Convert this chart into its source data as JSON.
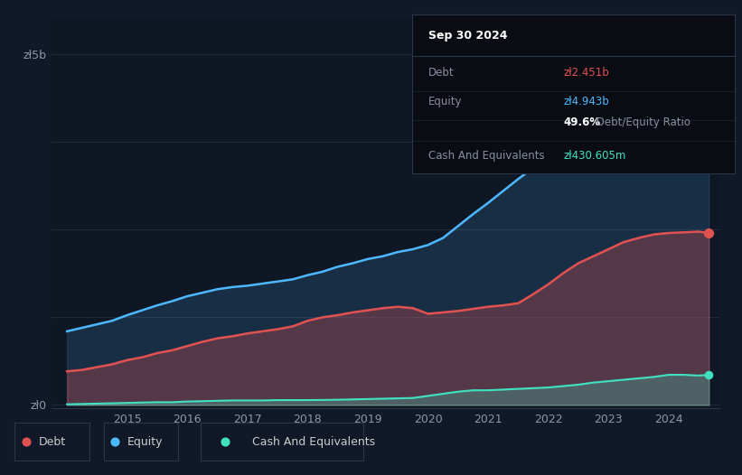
{
  "background_color": "#111827",
  "chart_bg_color": "#0f1724",
  "grid_color": "#1e2a3a",
  "debt_color": "#e05252",
  "equity_color": "#4db8ff",
  "cash_color": "#40e0c0",
  "years": [
    2014.0,
    2014.25,
    2014.5,
    2014.75,
    2015.0,
    2015.25,
    2015.5,
    2015.75,
    2016.0,
    2016.25,
    2016.5,
    2016.75,
    2017.0,
    2017.25,
    2017.5,
    2017.75,
    2018.0,
    2018.25,
    2018.5,
    2018.75,
    2019.0,
    2019.25,
    2019.5,
    2019.75,
    2020.0,
    2020.25,
    2020.5,
    2020.75,
    2021.0,
    2021.25,
    2021.5,
    2021.75,
    2022.0,
    2022.25,
    2022.5,
    2022.75,
    2023.0,
    2023.25,
    2023.5,
    2023.75,
    2024.0,
    2024.25,
    2024.5,
    2024.67
  ],
  "equity": [
    1.05,
    1.1,
    1.15,
    1.2,
    1.28,
    1.35,
    1.42,
    1.48,
    1.55,
    1.6,
    1.65,
    1.68,
    1.7,
    1.73,
    1.76,
    1.79,
    1.85,
    1.9,
    1.97,
    2.02,
    2.08,
    2.12,
    2.18,
    2.22,
    2.28,
    2.38,
    2.55,
    2.72,
    2.88,
    3.05,
    3.22,
    3.38,
    3.5,
    3.7,
    3.95,
    4.2,
    4.4,
    4.55,
    4.68,
    4.82,
    4.943,
    4.96,
    4.97,
    4.943
  ],
  "debt": [
    0.48,
    0.5,
    0.54,
    0.58,
    0.64,
    0.68,
    0.74,
    0.78,
    0.84,
    0.9,
    0.95,
    0.98,
    1.02,
    1.05,
    1.08,
    1.12,
    1.2,
    1.25,
    1.28,
    1.32,
    1.35,
    1.38,
    1.4,
    1.38,
    1.3,
    1.32,
    1.34,
    1.37,
    1.4,
    1.42,
    1.45,
    1.58,
    1.72,
    1.88,
    2.02,
    2.12,
    2.22,
    2.32,
    2.38,
    2.43,
    2.451,
    2.46,
    2.47,
    2.451
  ],
  "cash": [
    0.01,
    0.015,
    0.02,
    0.025,
    0.03,
    0.035,
    0.04,
    0.04,
    0.05,
    0.055,
    0.06,
    0.065,
    0.065,
    0.065,
    0.07,
    0.07,
    0.07,
    0.072,
    0.075,
    0.08,
    0.085,
    0.09,
    0.095,
    0.1,
    0.13,
    0.16,
    0.19,
    0.21,
    0.21,
    0.22,
    0.23,
    0.24,
    0.25,
    0.27,
    0.29,
    0.32,
    0.34,
    0.36,
    0.38,
    0.4,
    0.4306,
    0.43,
    0.42,
    0.4306
  ],
  "xlim": [
    2013.75,
    2024.85
  ],
  "ylim": [
    -0.05,
    5.5
  ],
  "yticks": [
    0,
    1.25,
    2.5,
    3.75,
    5.0
  ],
  "ytick_labels": [
    "zł0",
    "",
    "",
    "",
    "zł5b"
  ],
  "xtick_years": [
    2015,
    2016,
    2017,
    2018,
    2019,
    2020,
    2021,
    2022,
    2023,
    2024
  ],
  "info_box_title": "Sep 30 2024",
  "info_rows": [
    {
      "label": "Debt",
      "value": "zł2.451b",
      "value_color": "#e05252"
    },
    {
      "label": "Equity",
      "value": "zł4.943b",
      "value_color": "#4db8ff"
    },
    {
      "label": "",
      "value_bold": "49.6%",
      "value_rest": " Debt/Equity Ratio",
      "value_color": "#cccccc"
    },
    {
      "label": "Cash And Equivalents",
      "value": "zł430.605m",
      "value_color": "#40e0c0"
    }
  ],
  "legend_items": [
    {
      "label": "Debt",
      "color": "#e05252"
    },
    {
      "label": "Equity",
      "color": "#4db8ff"
    },
    {
      "label": "Cash And Equivalents",
      "color": "#40e0c0"
    }
  ]
}
